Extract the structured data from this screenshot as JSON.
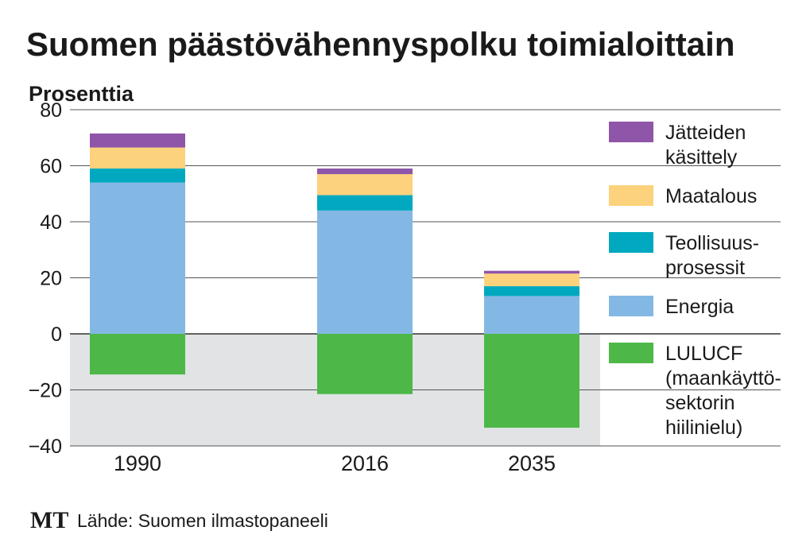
{
  "header": {
    "title": "Suomen päästövähennyspolku toimialoittain",
    "unit": "Prosenttia"
  },
  "footer": {
    "logo": "MT",
    "source": "Lähde: Suomen ilmastopaneeli"
  },
  "colors": {
    "negative_band": "#e1e3e5",
    "grid": "#555555",
    "zero_line": "#333333"
  },
  "chart_data": {
    "type": "bar",
    "stacked": true,
    "title": "Suomen päästövähennyspolku toimialoittain",
    "xlabel": "",
    "ylabel": "Prosenttia",
    "ylim": [
      -40,
      80
    ],
    "yticks": [
      80,
      60,
      40,
      20,
      0,
      -20,
      -40
    ],
    "ytick_labels": [
      "80",
      "60",
      "40",
      "20",
      "0",
      "−20",
      "−40"
    ],
    "grid": true,
    "legend_position": "right",
    "categories": [
      "1990",
      "2016",
      "2035"
    ],
    "series": [
      {
        "key": "lulucf",
        "name": "LULUCF",
        "legend_lines": [
          "LULUCF",
          "(maankäyttö-",
          "sektorin",
          "hiilinielu)"
        ],
        "color": "#4db848",
        "values": [
          -14.5,
          -21.5,
          -33.5
        ]
      },
      {
        "key": "energia",
        "name": "Energia",
        "legend_lines": [
          "Energia"
        ],
        "color": "#84b8e4",
        "values": [
          54,
          44,
          13.5
        ]
      },
      {
        "key": "teollisuus",
        "name": "Teollisuusprosessit",
        "legend_lines": [
          "Teollisuus-",
          "prosessit"
        ],
        "color": "#00a9bf",
        "values": [
          5,
          5.5,
          3.5
        ]
      },
      {
        "key": "maatalous",
        "name": "Maatalous",
        "legend_lines": [
          "Maatalous"
        ],
        "color": "#fdd27c",
        "values": [
          7.5,
          7.5,
          4.5
        ]
      },
      {
        "key": "jatteet",
        "name": "Jätteiden käsittely",
        "legend_lines": [
          "Jätteiden",
          "käsittely"
        ],
        "color": "#8e55a8",
        "values": [
          5,
          2,
          1
        ]
      }
    ],
    "legend_order": [
      "jatteet",
      "maatalous",
      "teollisuus",
      "energia",
      "lulucf"
    ]
  }
}
